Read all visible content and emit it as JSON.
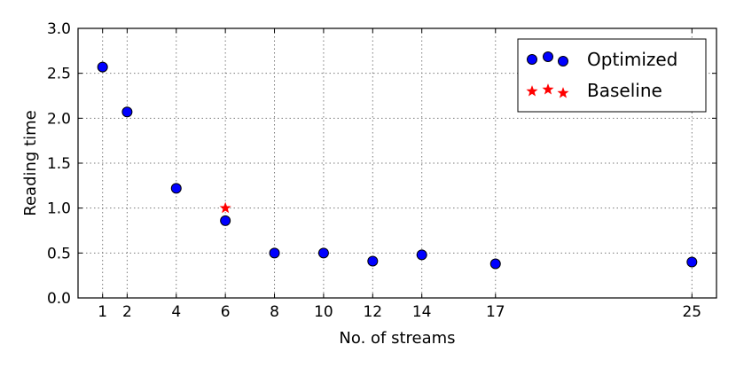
{
  "chart_data": {
    "type": "scatter",
    "xlabel": "No. of streams",
    "ylabel": "Reading time",
    "xlim": [
      0,
      26
    ],
    "ylim": [
      0.0,
      3.0
    ],
    "xticks": [
      1,
      2,
      4,
      6,
      8,
      10,
      12,
      14,
      17,
      25
    ],
    "yticks": [
      0.0,
      0.5,
      1.0,
      1.5,
      2.0,
      2.5,
      3.0
    ],
    "ytick_labels": [
      "0.0",
      "0.5",
      "1.0",
      "1.5",
      "2.0",
      "2.5",
      "3.0"
    ],
    "grid": true,
    "legend_position": "top-right",
    "series": [
      {
        "name": "Optimized",
        "marker": "circle",
        "color": "#0000ff",
        "x": [
          1,
          2,
          4,
          6,
          8,
          10,
          12,
          14,
          17,
          25
        ],
        "y": [
          2.57,
          2.07,
          1.22,
          0.86,
          0.5,
          0.5,
          0.41,
          0.48,
          0.38,
          0.4
        ]
      },
      {
        "name": "Baseline",
        "marker": "star",
        "color": "#ff0000",
        "x": [
          6
        ],
        "y": [
          1.0
        ]
      }
    ]
  }
}
